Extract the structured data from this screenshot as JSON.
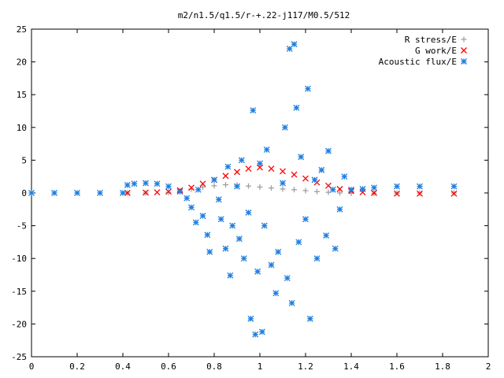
{
  "chart_data": {
    "type": "scatter",
    "title": "m2/n1.5/q1.5/r-+.22-j117/M0.5/512",
    "xlabel": "",
    "ylabel": "",
    "xlim": [
      0,
      2
    ],
    "ylim": [
      -25,
      25
    ],
    "xticks": [
      0,
      0.2,
      0.4,
      0.6,
      0.8,
      1,
      1.2,
      1.4,
      1.6,
      1.8,
      2
    ],
    "xtick_labels": [
      "0",
      "0.2",
      "0.4",
      "0.6",
      "0.8",
      "1",
      "1.2",
      "1.4",
      "1.6",
      "1.8",
      "2"
    ],
    "yticks": [
      -25,
      -20,
      -15,
      -10,
      -5,
      0,
      5,
      10,
      15,
      20,
      25
    ],
    "ytick_labels": [
      "-25",
      "-20",
      "-15",
      "-10",
      "-5",
      "0",
      "5",
      "10",
      "15",
      "20",
      "25"
    ],
    "grid": false,
    "legend_position": "top-right",
    "series": [
      {
        "name": "R stress/E",
        "marker": "plus",
        "color": "#a0a0a0",
        "points": [
          [
            0.42,
            0.0
          ],
          [
            0.5,
            0.0
          ],
          [
            0.6,
            0.1
          ],
          [
            0.65,
            0.3
          ],
          [
            0.7,
            0.6
          ],
          [
            0.75,
            0.9
          ],
          [
            0.8,
            1.1
          ],
          [
            0.85,
            1.25
          ],
          [
            0.9,
            1.2
          ],
          [
            0.95,
            1.05
          ],
          [
            1.0,
            0.9
          ],
          [
            1.05,
            0.75
          ],
          [
            1.1,
            0.6
          ],
          [
            1.15,
            0.5
          ],
          [
            1.2,
            0.35
          ],
          [
            1.25,
            0.2
          ],
          [
            1.3,
            0.1
          ],
          [
            1.35,
            0.0
          ],
          [
            1.4,
            -0.05
          ],
          [
            1.5,
            -0.05
          ],
          [
            1.6,
            -0.03
          ],
          [
            1.7,
            -0.02
          ],
          [
            1.85,
            0.0
          ]
        ]
      },
      {
        "name": "G work/E",
        "marker": "cross",
        "color": "#ff0000",
        "points": [
          [
            0.42,
            0.0
          ],
          [
            0.5,
            0.05
          ],
          [
            0.55,
            0.1
          ],
          [
            0.6,
            0.2
          ],
          [
            0.65,
            0.4
          ],
          [
            0.7,
            0.8
          ],
          [
            0.75,
            1.4
          ],
          [
            0.8,
            2.0
          ],
          [
            0.85,
            2.6
          ],
          [
            0.9,
            3.2
          ],
          [
            0.95,
            3.7
          ],
          [
            1.0,
            3.9
          ],
          [
            1.05,
            3.7
          ],
          [
            1.1,
            3.3
          ],
          [
            1.15,
            2.8
          ],
          [
            1.2,
            2.2
          ],
          [
            1.25,
            1.6
          ],
          [
            1.3,
            1.1
          ],
          [
            1.35,
            0.6
          ],
          [
            1.4,
            0.3
          ],
          [
            1.45,
            0.1
          ],
          [
            1.5,
            0.0
          ],
          [
            1.6,
            -0.1
          ],
          [
            1.7,
            -0.1
          ],
          [
            1.85,
            -0.1
          ]
        ]
      },
      {
        "name": "Acoustic flux/E",
        "marker": "star",
        "color": "#1e7fe0",
        "points": [
          [
            0.0,
            0.0
          ],
          [
            0.1,
            0.0
          ],
          [
            0.2,
            0.0
          ],
          [
            0.3,
            0.0
          ],
          [
            0.4,
            0.0
          ],
          [
            0.42,
            1.2
          ],
          [
            0.45,
            1.4
          ],
          [
            0.5,
            1.5
          ],
          [
            0.55,
            1.4
          ],
          [
            0.6,
            1.0
          ],
          [
            0.65,
            0.2
          ],
          [
            0.68,
            -0.8
          ],
          [
            0.7,
            -2.2
          ],
          [
            0.72,
            -4.5
          ],
          [
            0.73,
            0.5
          ],
          [
            0.75,
            -3.5
          ],
          [
            0.77,
            -6.4
          ],
          [
            0.78,
            -9.0
          ],
          [
            0.8,
            2.0
          ],
          [
            0.82,
            -1.0
          ],
          [
            0.83,
            -4.0
          ],
          [
            0.85,
            -8.5
          ],
          [
            0.86,
            4.0
          ],
          [
            0.87,
            -12.6
          ],
          [
            0.88,
            -5.0
          ],
          [
            0.9,
            1.0
          ],
          [
            0.91,
            -7.0
          ],
          [
            0.92,
            5.0
          ],
          [
            0.93,
            -10.0
          ],
          [
            0.95,
            -3.0
          ],
          [
            0.96,
            -19.2
          ],
          [
            0.97,
            12.6
          ],
          [
            0.98,
            -21.6
          ],
          [
            0.99,
            -12.0
          ],
          [
            1.0,
            4.5
          ],
          [
            1.01,
            -21.2
          ],
          [
            1.02,
            -5.0
          ],
          [
            1.03,
            6.6
          ],
          [
            1.05,
            -11.0
          ],
          [
            1.07,
            -15.3
          ],
          [
            1.08,
            -9.0
          ],
          [
            1.1,
            1.5
          ],
          [
            1.11,
            10.0
          ],
          [
            1.12,
            -13.0
          ],
          [
            1.13,
            22.0
          ],
          [
            1.14,
            -16.8
          ],
          [
            1.15,
            22.7
          ],
          [
            1.16,
            13.0
          ],
          [
            1.17,
            -7.5
          ],
          [
            1.18,
            5.5
          ],
          [
            1.2,
            -4.0
          ],
          [
            1.21,
            15.9
          ],
          [
            1.22,
            -19.2
          ],
          [
            1.24,
            2.0
          ],
          [
            1.25,
            -10.0
          ],
          [
            1.27,
            3.5
          ],
          [
            1.29,
            -6.5
          ],
          [
            1.3,
            6.4
          ],
          [
            1.32,
            0.5
          ],
          [
            1.33,
            -8.5
          ],
          [
            1.35,
            -2.5
          ],
          [
            1.37,
            2.5
          ],
          [
            1.4,
            0.5
          ],
          [
            1.45,
            0.6
          ],
          [
            1.5,
            0.8
          ],
          [
            1.6,
            1.0
          ],
          [
            1.7,
            1.0
          ],
          [
            1.85,
            1.0
          ]
        ]
      }
    ]
  }
}
